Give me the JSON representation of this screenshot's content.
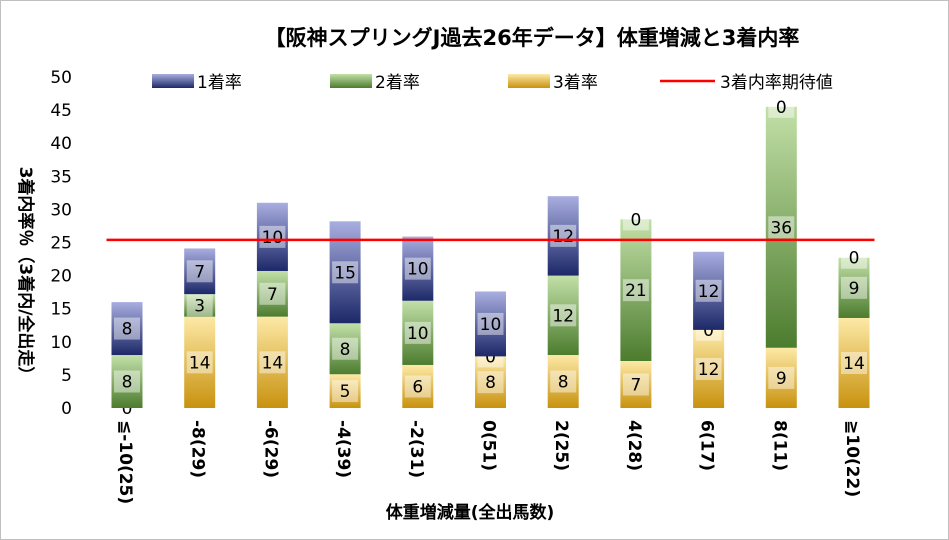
{
  "chart_data": {
    "type": "bar",
    "stacked": true,
    "title": "【阪神スプリングJ過去26年データ】体重増減と3着内率",
    "xlabel": "体重増減量(全出馬数)",
    "ylabel": "3着内率％（3着内/全出走）",
    "ylim": [
      0,
      50
    ],
    "yticks": [
      0,
      5,
      10,
      15,
      20,
      25,
      30,
      35,
      40,
      45,
      50
    ],
    "grid": false,
    "legend_position": "top",
    "categories": [
      "≦-10(25)",
      "-8(29)",
      "-6(29)",
      "-4(39)",
      "-2(31)",
      "0(51)",
      "2(25)",
      "4(28)",
      "6(17)",
      "8(11)",
      "≧10(22)"
    ],
    "series": [
      {
        "name": "3着率",
        "values": [
          0,
          13.8,
          13.8,
          5.1,
          6.5,
          7.8,
          8,
          7.1,
          11.8,
          9.1,
          13.6
        ],
        "labels": [
          "0",
          "14",
          "14",
          "5",
          "6",
          "8",
          "8",
          "7",
          "12",
          "9",
          "14"
        ],
        "color_light": "#fde9a6",
        "color_dark": "#c8920e"
      },
      {
        "name": "2着率",
        "values": [
          8,
          3.4,
          6.9,
          7.7,
          9.7,
          0,
          12,
          21.4,
          0,
          36.4,
          9.1
        ],
        "labels": [
          "8",
          "3",
          "7",
          "8",
          "10",
          "0",
          "12",
          "21",
          "0",
          "36",
          "9"
        ],
        "color_light": "#c2e0a8",
        "color_dark": "#4c7c2e"
      },
      {
        "name": "1着率",
        "values": [
          8,
          6.9,
          10.3,
          15.4,
          9.7,
          9.8,
          12,
          0,
          11.8,
          0,
          0
        ],
        "labels": [
          "8",
          "7",
          "10",
          "15",
          "10",
          "10",
          "12",
          "0",
          "12",
          "0",
          "0"
        ],
        "color_light": "#a9aee0",
        "color_dark": "#1c2868"
      }
    ],
    "reference_line": {
      "name": "3着内率期待値",
      "value": 25.4,
      "color": "#ff0000"
    },
    "legend_order": [
      "1着率",
      "2着率",
      "3着率",
      "3着内率期待値"
    ]
  }
}
